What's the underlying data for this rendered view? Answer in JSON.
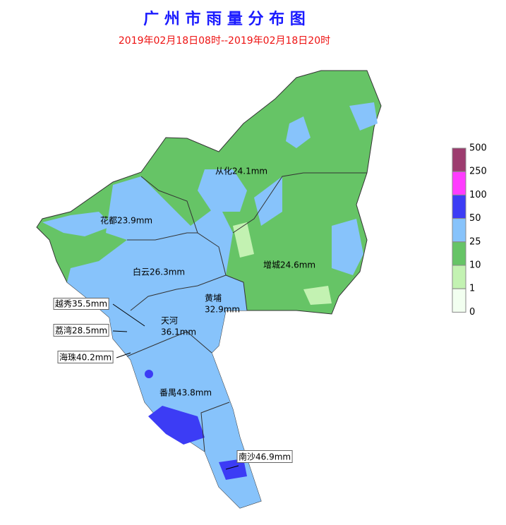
{
  "header": {
    "title": "广 州 市 雨 量 分 布 图",
    "subtitle": "2019年02月18日08时--2019年02月18日20时"
  },
  "districts": [
    {
      "lines": [
        "从化24.1mm"
      ]
    },
    {
      "lines": [
        "花都23.9mm"
      ]
    },
    {
      "lines": [
        "白云26.3mm"
      ]
    },
    {
      "lines": [
        "增城24.6mm"
      ]
    },
    {
      "lines": [
        "黄埔",
        "32.9mm"
      ]
    },
    {
      "lines": [
        "天河",
        "36.1mm"
      ]
    },
    {
      "lines": [
        "越秀35.5mm"
      ]
    },
    {
      "lines": [
        "荔湾28.5mm"
      ]
    },
    {
      "lines": [
        "海珠40.2mm"
      ]
    },
    {
      "lines": [
        "番禺43.8mm"
      ]
    },
    {
      "lines": [
        "南沙46.9mm"
      ]
    }
  ],
  "legend": {
    "ticks": [
      500,
      250,
      100,
      50,
      25,
      10,
      1,
      0
    ],
    "colors": [
      "#9c3c6e",
      "#ff3cff",
      "#3c3cf5",
      "#87c3fb",
      "#66c466",
      "#c3f2b2",
      "#f2fff0"
    ]
  }
}
